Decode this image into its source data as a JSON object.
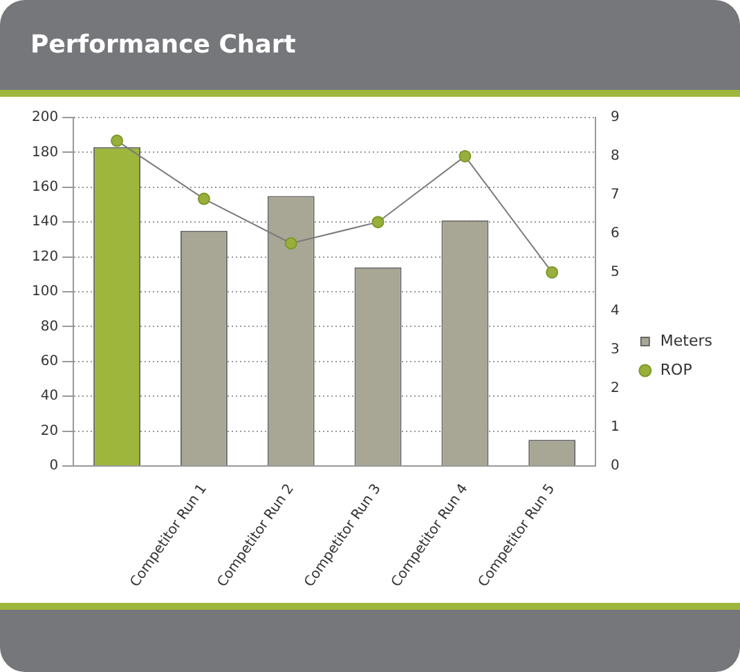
{
  "chart_data": {
    "type": "bar",
    "title": "Performance Chart",
    "categories": [
      null,
      "Competitor Run 1",
      "Competitor Run 2",
      "Competitor Run 3",
      "Competitor Run 4",
      "Competitor Run 5"
    ],
    "series": [
      {
        "name": "Meters",
        "color": "#a8a796",
        "colors": [
          "#9db63b",
          "#a8a796",
          "#a8a796",
          "#a8a796",
          "#a8a796",
          "#a8a796"
        ],
        "values": [
          183,
          135,
          155,
          114,
          141,
          15
        ]
      },
      {
        "name": "ROP",
        "type": "line",
        "axis": "y2",
        "color": "#7a7a7a",
        "marker": "circle",
        "values": [
          8.4,
          6.9,
          5.75,
          6.3,
          8.0,
          5.0
        ]
      }
    ],
    "ylim": [
      0,
      200
    ],
    "yticks": [
      0,
      20,
      40,
      60,
      80,
      100,
      120,
      140,
      160,
      180,
      200
    ],
    "y2lim": [
      0,
      9
    ],
    "y2ticks": [
      0,
      1,
      2,
      3,
      4,
      5,
      6,
      7,
      8,
      9
    ],
    "grid": "y",
    "legend": "right"
  }
}
